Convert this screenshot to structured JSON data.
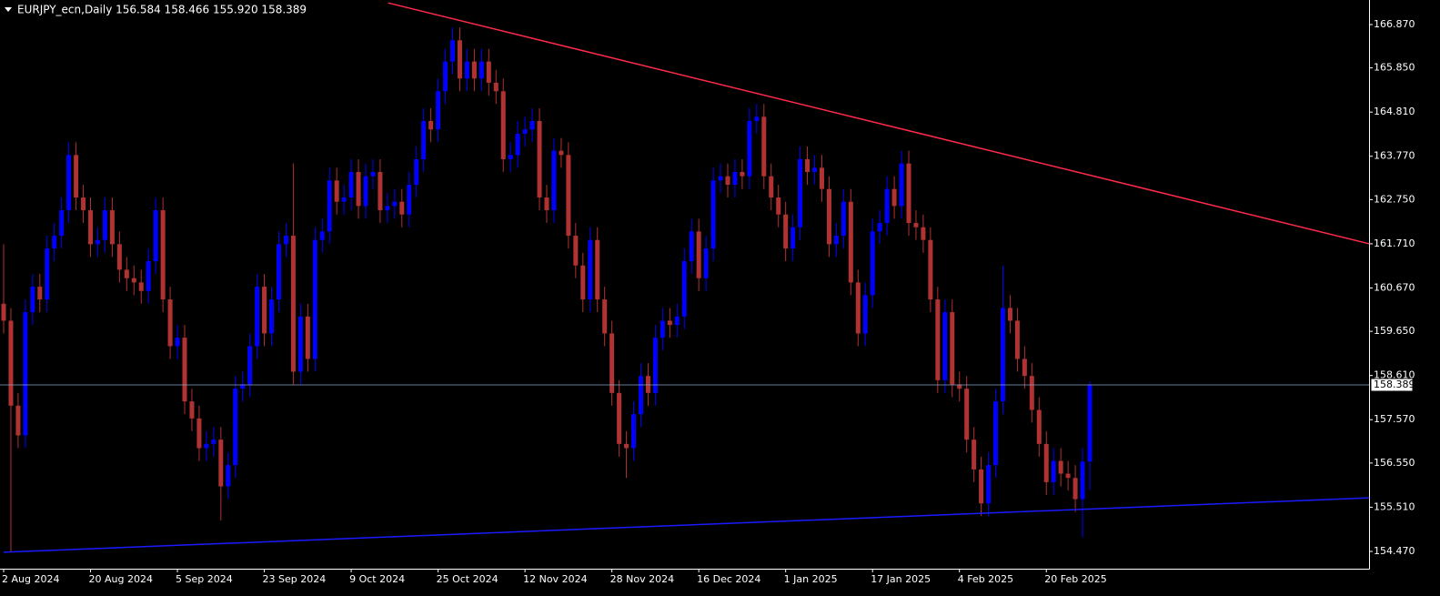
{
  "chart_data": {
    "type": "candlestick",
    "title": "EURJPY_ecn,Daily  156.584 158.466 155.920 158.389",
    "up_color": "#0000ff",
    "down_color": "#b03232",
    "background": "#000000",
    "axis_color": "#ffffff",
    "ylim": [
      154.063,
      167.448
    ],
    "yticks": [
      {
        "value": 166.87,
        "label": "166.870"
      },
      {
        "value": 165.85,
        "label": "165.850"
      },
      {
        "value": 164.81,
        "label": "164.810"
      },
      {
        "value": 163.77,
        "label": "163.770"
      },
      {
        "value": 162.75,
        "label": "162.750"
      },
      {
        "value": 161.71,
        "label": "161.710"
      },
      {
        "value": 160.67,
        "label": "160.670"
      },
      {
        "value": 159.65,
        "label": "159.650"
      },
      {
        "value": 158.61,
        "label": "158.610"
      },
      {
        "value": 157.57,
        "label": "157.570"
      },
      {
        "value": 156.55,
        "label": "156.550"
      },
      {
        "value": 155.51,
        "label": "155.510"
      },
      {
        "value": 154.47,
        "label": "154.470"
      }
    ],
    "grid": false,
    "categories": [
      "2 Aug 2024",
      null,
      null,
      null,
      null,
      null,
      null,
      null,
      null,
      null,
      null,
      null,
      "20 Aug 2024",
      null,
      null,
      null,
      null,
      null,
      null,
      null,
      null,
      null,
      null,
      null,
      "5 Sep 2024",
      null,
      null,
      null,
      null,
      null,
      null,
      null,
      null,
      null,
      null,
      null,
      "23 Sep 2024",
      null,
      null,
      null,
      null,
      null,
      null,
      null,
      null,
      null,
      null,
      null,
      "9 Oct 2024",
      null,
      null,
      null,
      null,
      null,
      null,
      null,
      null,
      null,
      null,
      null,
      "25 Oct 2024",
      null,
      null,
      null,
      null,
      null,
      null,
      null,
      null,
      null,
      null,
      null,
      "12 Nov 2024",
      null,
      null,
      null,
      null,
      null,
      null,
      null,
      null,
      null,
      null,
      null,
      "28 Nov 2024",
      null,
      null,
      null,
      null,
      null,
      null,
      null,
      null,
      null,
      null,
      null,
      "16 Dec 2024",
      null,
      null,
      null,
      null,
      null,
      null,
      null,
      null,
      null,
      null,
      null,
      "1 Jan 2025",
      null,
      null,
      null,
      null,
      null,
      null,
      null,
      null,
      null,
      null,
      null,
      "17 Jan 2025",
      null,
      null,
      null,
      null,
      null,
      null,
      null,
      null,
      null,
      null,
      null,
      "4 Feb 2025",
      null,
      null,
      null,
      null,
      null,
      null,
      null,
      null,
      null,
      null,
      null,
      "20 Feb 2025",
      null,
      null,
      null,
      null,
      null,
      null
    ],
    "ohlc": [
      [
        160.3,
        161.7,
        159.6,
        159.9
      ],
      [
        159.9,
        160.2,
        154.45,
        157.9
      ],
      [
        157.9,
        158.2,
        156.9,
        157.2
      ],
      [
        157.2,
        160.4,
        156.9,
        160.1
      ],
      [
        160.1,
        161.0,
        159.8,
        160.7
      ],
      [
        160.7,
        161.0,
        160.1,
        160.4
      ],
      [
        160.4,
        161.9,
        160.1,
        161.6
      ],
      [
        161.6,
        162.2,
        161.3,
        161.9
      ],
      [
        161.9,
        162.8,
        161.6,
        162.5
      ],
      [
        162.5,
        164.1,
        162.2,
        163.8
      ],
      [
        163.8,
        164.1,
        162.5,
        162.8
      ],
      [
        162.8,
        163.1,
        162.2,
        162.5
      ],
      [
        162.5,
        162.8,
        161.4,
        161.7
      ],
      [
        161.7,
        162.1,
        161.4,
        161.8
      ],
      [
        161.8,
        162.8,
        161.5,
        162.5
      ],
      [
        162.5,
        162.8,
        161.4,
        161.7
      ],
      [
        161.7,
        162.0,
        160.8,
        161.1
      ],
      [
        161.1,
        161.4,
        160.6,
        160.9
      ],
      [
        160.9,
        161.2,
        160.5,
        160.8
      ],
      [
        160.8,
        161.1,
        160.3,
        160.6
      ],
      [
        160.6,
        161.6,
        160.3,
        161.3
      ],
      [
        161.3,
        162.8,
        161.0,
        162.5
      ],
      [
        162.5,
        162.8,
        160.1,
        160.4
      ],
      [
        160.4,
        160.7,
        159.0,
        159.3
      ],
      [
        159.3,
        159.8,
        159.0,
        159.5
      ],
      [
        159.5,
        159.8,
        157.7,
        158.0
      ],
      [
        158.0,
        158.3,
        157.3,
        157.6
      ],
      [
        157.6,
        157.9,
        156.6,
        156.9
      ],
      [
        156.9,
        157.3,
        156.6,
        157.0
      ],
      [
        157.0,
        157.4,
        156.7,
        157.1
      ],
      [
        157.1,
        157.4,
        155.2,
        156.0
      ],
      [
        156.0,
        156.8,
        155.7,
        156.5
      ],
      [
        156.5,
        158.6,
        156.2,
        158.3
      ],
      [
        158.3,
        158.7,
        158.0,
        158.4
      ],
      [
        158.4,
        159.6,
        158.1,
        159.3
      ],
      [
        159.3,
        161.0,
        159.0,
        160.7
      ],
      [
        160.7,
        161.0,
        159.3,
        159.6
      ],
      [
        159.6,
        160.7,
        159.3,
        160.4
      ],
      [
        160.4,
        162.0,
        160.1,
        161.7
      ],
      [
        161.7,
        162.2,
        161.4,
        161.9
      ],
      [
        161.9,
        163.6,
        158.4,
        158.7
      ],
      [
        158.7,
        160.3,
        158.4,
        160.0
      ],
      [
        160.0,
        160.3,
        158.7,
        159.0
      ],
      [
        159.0,
        162.1,
        158.7,
        161.8
      ],
      [
        161.8,
        162.3,
        161.5,
        162.0
      ],
      [
        162.0,
        163.5,
        161.7,
        163.2
      ],
      [
        163.2,
        163.5,
        162.4,
        162.7
      ],
      [
        162.7,
        163.1,
        162.4,
        162.8
      ],
      [
        162.8,
        163.7,
        162.5,
        163.4
      ],
      [
        163.4,
        163.7,
        162.3,
        162.6
      ],
      [
        162.6,
        163.6,
        162.3,
        163.3
      ],
      [
        163.3,
        163.7,
        163.0,
        163.4
      ],
      [
        163.4,
        163.7,
        162.2,
        162.5
      ],
      [
        162.5,
        162.9,
        162.2,
        162.6
      ],
      [
        162.6,
        163.0,
        162.3,
        162.7
      ],
      [
        162.7,
        163.0,
        162.1,
        162.4
      ],
      [
        162.4,
        163.4,
        162.1,
        163.1
      ],
      [
        163.1,
        164.0,
        162.8,
        163.7
      ],
      [
        163.7,
        164.9,
        163.4,
        164.6
      ],
      [
        164.6,
        164.9,
        164.1,
        164.4
      ],
      [
        164.4,
        165.6,
        164.1,
        165.3
      ],
      [
        165.3,
        166.3,
        165.0,
        166.0
      ],
      [
        166.0,
        166.8,
        165.7,
        166.5
      ],
      [
        166.5,
        166.8,
        165.3,
        165.6
      ],
      [
        165.6,
        166.3,
        165.3,
        166.0
      ],
      [
        166.0,
        166.3,
        165.3,
        165.6
      ],
      [
        165.6,
        166.3,
        165.3,
        166.0
      ],
      [
        166.0,
        166.3,
        165.2,
        165.5
      ],
      [
        165.5,
        165.8,
        165.0,
        165.3
      ],
      [
        165.3,
        165.6,
        163.4,
        163.7
      ],
      [
        163.7,
        164.1,
        163.4,
        163.8
      ],
      [
        163.8,
        164.6,
        163.5,
        164.3
      ],
      [
        164.3,
        164.7,
        164.0,
        164.4
      ],
      [
        164.4,
        164.9,
        164.1,
        164.6
      ],
      [
        164.6,
        164.9,
        162.5,
        162.8
      ],
      [
        162.8,
        163.1,
        162.2,
        162.5
      ],
      [
        162.5,
        164.2,
        162.2,
        163.9
      ],
      [
        163.9,
        164.2,
        163.5,
        163.8
      ],
      [
        163.8,
        164.1,
        161.6,
        161.9
      ],
      [
        161.9,
        162.2,
        160.9,
        161.2
      ],
      [
        161.2,
        161.5,
        160.1,
        160.4
      ],
      [
        160.4,
        162.1,
        160.1,
        161.8
      ],
      [
        161.8,
        162.1,
        160.1,
        160.4
      ],
      [
        160.4,
        160.7,
        159.3,
        159.6
      ],
      [
        159.6,
        159.9,
        157.9,
        158.2
      ],
      [
        158.2,
        158.5,
        156.7,
        157.0
      ],
      [
        157.0,
        157.3,
        156.2,
        156.9
      ],
      [
        156.9,
        158.0,
        156.6,
        157.7
      ],
      [
        157.7,
        158.9,
        157.4,
        158.6
      ],
      [
        158.6,
        158.9,
        157.9,
        158.2
      ],
      [
        158.2,
        159.8,
        157.9,
        159.5
      ],
      [
        159.5,
        160.2,
        159.2,
        159.9
      ],
      [
        159.9,
        160.2,
        159.5,
        159.8
      ],
      [
        159.8,
        160.3,
        159.5,
        160.0
      ],
      [
        160.0,
        161.6,
        159.7,
        161.3
      ],
      [
        161.3,
        162.3,
        161.0,
        162.0
      ],
      [
        162.0,
        162.3,
        160.6,
        160.9
      ],
      [
        160.9,
        161.9,
        160.6,
        161.6
      ],
      [
        161.6,
        163.5,
        161.3,
        163.2
      ],
      [
        163.2,
        163.6,
        162.9,
        163.3
      ],
      [
        163.3,
        163.6,
        162.8,
        163.1
      ],
      [
        163.1,
        163.7,
        162.8,
        163.4
      ],
      [
        163.4,
        163.7,
        163.0,
        163.3
      ],
      [
        163.3,
        164.9,
        163.0,
        164.6
      ],
      [
        164.6,
        165.0,
        164.3,
        164.7
      ],
      [
        164.7,
        165.0,
        163.0,
        163.3
      ],
      [
        163.3,
        163.6,
        162.5,
        162.8
      ],
      [
        162.8,
        163.1,
        162.1,
        162.4
      ],
      [
        162.4,
        162.7,
        161.3,
        161.6
      ],
      [
        161.6,
        162.4,
        161.3,
        162.1
      ],
      [
        162.1,
        164.0,
        161.8,
        163.7
      ],
      [
        163.7,
        164.0,
        163.1,
        163.4
      ],
      [
        163.4,
        163.8,
        163.1,
        163.5
      ],
      [
        163.5,
        163.8,
        162.7,
        163.0
      ],
      [
        163.0,
        163.3,
        161.4,
        161.7
      ],
      [
        161.7,
        162.2,
        161.4,
        161.9
      ],
      [
        161.9,
        163.0,
        161.6,
        162.7
      ],
      [
        162.7,
        163.0,
        160.5,
        160.8
      ],
      [
        160.8,
        161.1,
        159.3,
        159.6
      ],
      [
        159.6,
        160.8,
        159.3,
        160.5
      ],
      [
        160.5,
        162.3,
        160.2,
        162.0
      ],
      [
        162.0,
        162.5,
        161.7,
        162.2
      ],
      [
        162.2,
        163.3,
        161.9,
        163.0
      ],
      [
        163.0,
        163.3,
        162.3,
        162.6
      ],
      [
        162.6,
        163.9,
        162.3,
        163.6
      ],
      [
        163.6,
        163.9,
        161.9,
        162.2
      ],
      [
        162.2,
        162.5,
        161.8,
        162.1
      ],
      [
        162.1,
        162.4,
        161.5,
        161.8
      ],
      [
        161.8,
        162.1,
        160.1,
        160.4
      ],
      [
        160.4,
        160.7,
        158.2,
        158.5
      ],
      [
        158.5,
        160.4,
        158.2,
        160.1
      ],
      [
        160.1,
        160.4,
        158.1,
        158.4
      ],
      [
        158.4,
        158.7,
        158.0,
        158.3
      ],
      [
        158.3,
        158.6,
        156.8,
        157.1
      ],
      [
        157.1,
        157.4,
        156.1,
        156.4
      ],
      [
        156.4,
        156.7,
        155.3,
        155.6
      ],
      [
        155.6,
        156.8,
        155.3,
        156.5
      ],
      [
        156.5,
        158.3,
        156.2,
        158.0
      ],
      [
        158.0,
        161.2,
        157.7,
        160.2
      ],
      [
        160.2,
        160.5,
        159.6,
        159.9
      ],
      [
        159.9,
        160.2,
        158.7,
        159.0
      ],
      [
        159.0,
        159.3,
        158.3,
        158.6
      ],
      [
        158.6,
        158.9,
        157.5,
        157.8
      ],
      [
        157.8,
        158.1,
        156.7,
        157.0
      ],
      [
        157.0,
        157.3,
        155.8,
        156.1
      ],
      [
        156.1,
        156.9,
        155.8,
        156.6
      ],
      [
        156.6,
        156.9,
        156.0,
        156.3
      ],
      [
        156.3,
        156.6,
        155.9,
        156.2
      ],
      [
        156.2,
        156.5,
        155.4,
        155.7
      ],
      [
        155.7,
        156.9,
        154.8,
        156.584
      ],
      [
        156.584,
        158.466,
        155.92,
        158.389
      ]
    ],
    "last_price_label": "158.389",
    "trendlines": [
      {
        "color": "#ff2a4a",
        "x": [
          53.1,
          188.6
        ],
        "y": [
          167.38,
          161.71
        ]
      },
      {
        "color": "#1a1aff",
        "x": [
          0,
          188.6
        ],
        "y": [
          154.45,
          155.73
        ]
      }
    ]
  }
}
